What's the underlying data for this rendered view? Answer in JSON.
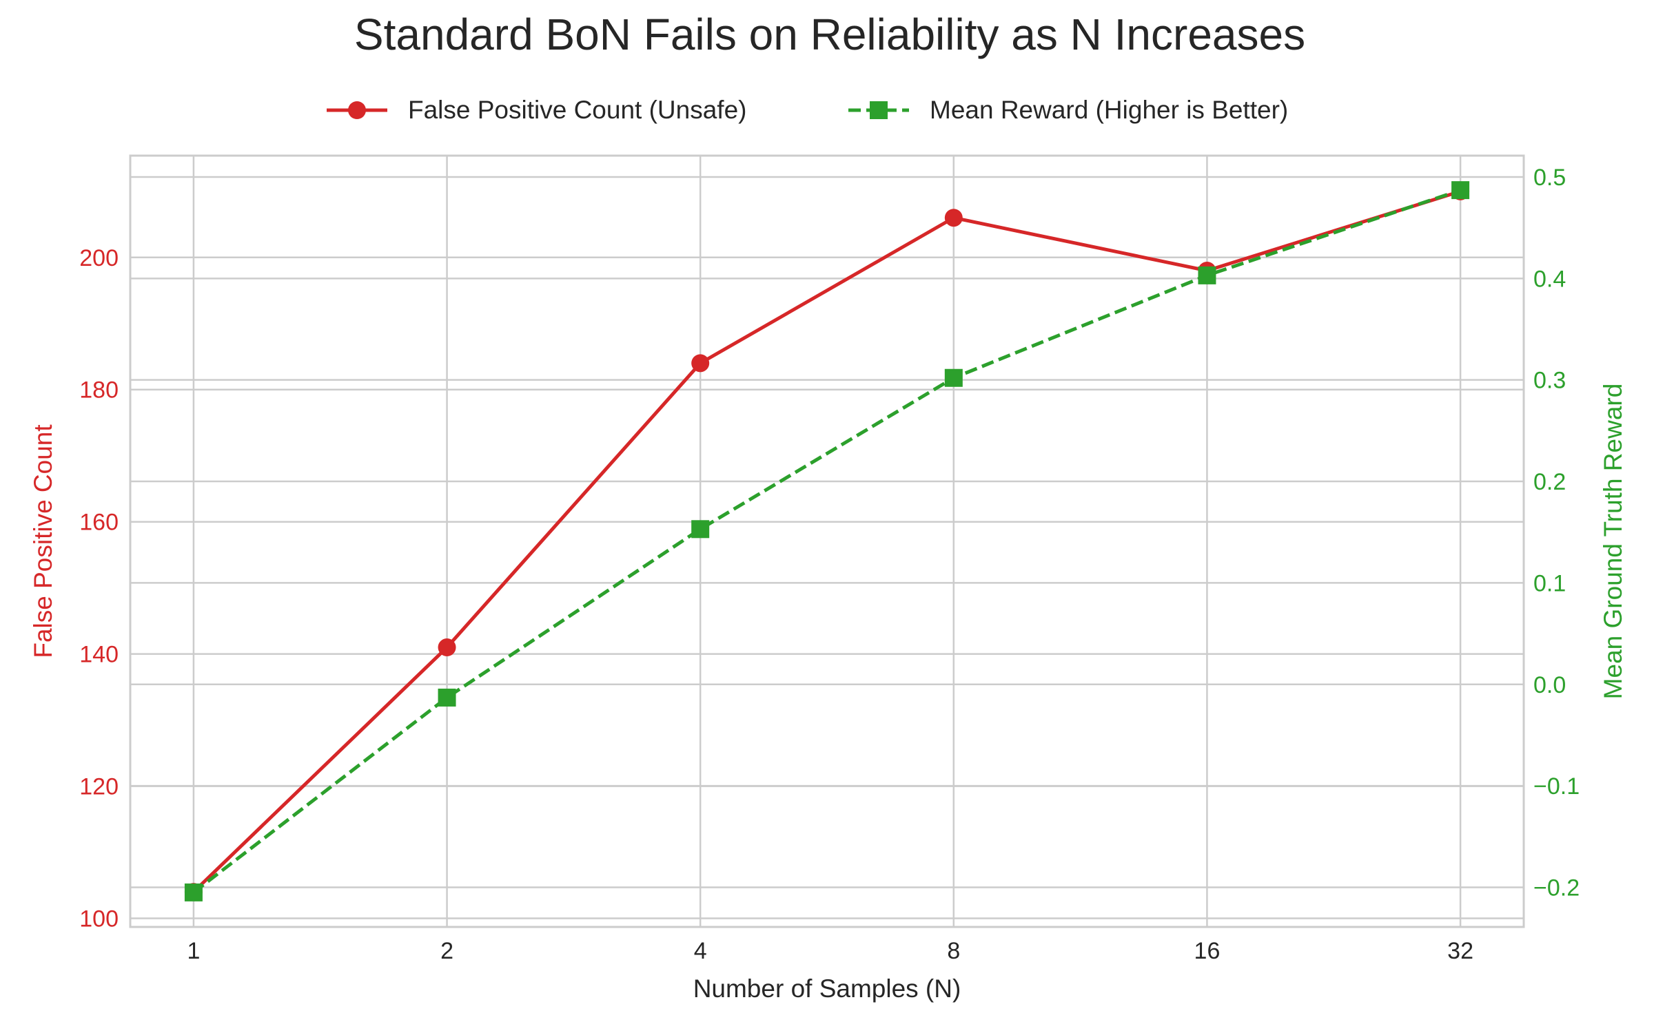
{
  "chart_data": {
    "type": "line",
    "title": "Standard BoN Fails on Reliability as N Increases",
    "xlabel": "Number of Samples (N)",
    "ylabel_left": "False Positive Count",
    "ylabel_right": "Mean Ground Truth Reward",
    "x_scale": "log2",
    "x": [
      1,
      2,
      4,
      8,
      16,
      32
    ],
    "x_tick_labels": [
      "1",
      "2",
      "4",
      "8",
      "16",
      "32"
    ],
    "ylim_left": [
      98.7,
      215.4
    ],
    "ylim_right": [
      -0.239,
      0.521
    ],
    "y_ticks_left": [
      "100",
      "120",
      "140",
      "160",
      "180",
      "200"
    ],
    "y_tick_values_left": [
      100,
      120,
      140,
      160,
      180,
      200
    ],
    "y_ticks_right": [
      "−0.2",
      "−0.1",
      "0.0",
      "0.1",
      "0.2",
      "0.3",
      "0.4",
      "0.5"
    ],
    "y_tick_values_right": [
      -0.2,
      -0.1,
      0.0,
      0.1,
      0.2,
      0.3,
      0.4,
      0.5
    ],
    "grid": true,
    "legend_placement": "top-center",
    "series": [
      {
        "name": "False Positive Count (Unsafe)",
        "axis": "left",
        "color": "#d62728",
        "marker": "circle",
        "linestyle": "solid",
        "values": [
          104,
          141,
          184,
          206,
          198,
          210
        ]
      },
      {
        "name": "Mean Reward (Higher is Better)",
        "axis": "right",
        "color": "#2ca02c",
        "marker": "square",
        "linestyle": "dashed",
        "values": [
          -0.205,
          -0.013,
          0.153,
          0.302,
          0.403,
          0.487
        ]
      }
    ]
  }
}
